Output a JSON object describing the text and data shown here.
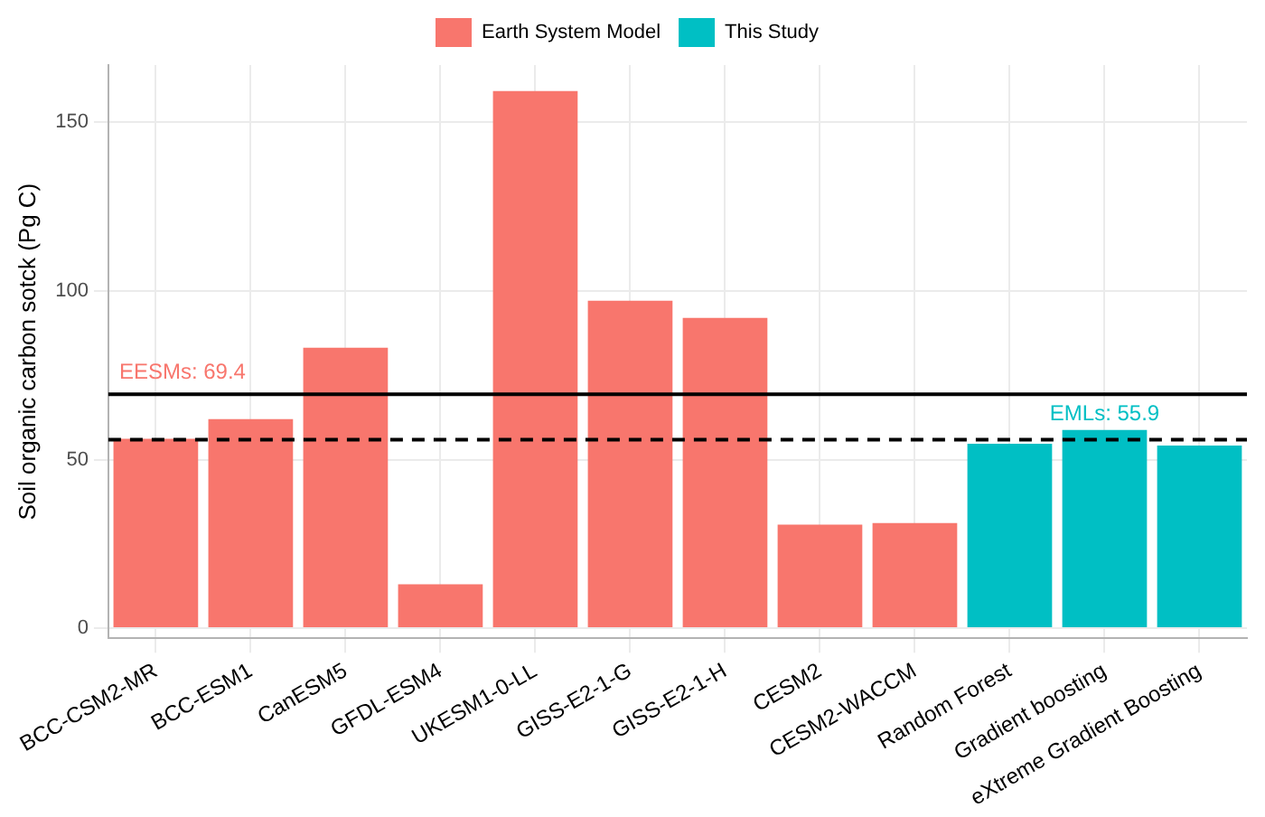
{
  "chart_data": {
    "type": "bar",
    "ylabel": "Soil organic carbon sotck (Pg C)",
    "categories": [
      "BCC-CSM2-MR",
      "BCC-ESM1",
      "CanESM5",
      "GFDL-ESM4",
      "UKESM1-0-LL",
      "GISS-E2-1-G",
      "GISS-E2-1-H",
      "CESM2",
      "CESM2-WACCM",
      "Random Forest",
      "Gradient boosting",
      "eXtreme Gradient Boosting"
    ],
    "series": [
      {
        "name": "Earth System Model",
        "color": "#f8766d",
        "values": [
          56.2,
          62.0,
          83.2,
          13.0,
          159.3,
          97.1,
          92.0,
          30.7,
          31.2,
          null,
          null,
          null
        ]
      },
      {
        "name": "This Study",
        "color": "#00bfc4",
        "values": [
          null,
          null,
          null,
          null,
          null,
          null,
          null,
          null,
          null,
          54.7,
          58.8,
          54.2
        ]
      }
    ],
    "ylim": [
      -3,
      167
    ],
    "yticks": [
      0,
      50,
      100,
      150
    ],
    "grid": true,
    "legend": "top",
    "ref_lines": [
      {
        "axis": "y",
        "value": 69.4,
        "label": "EESMs: 69.4",
        "color": "#000000",
        "line_style": "solid"
      },
      {
        "axis": "y",
        "value": 55.9,
        "label": "EMLs: 55.9",
        "color": "#000000",
        "line_style": "dashed"
      }
    ]
  }
}
